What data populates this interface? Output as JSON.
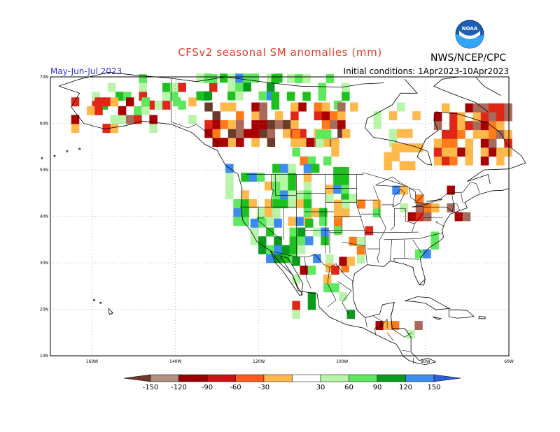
{
  "header": {
    "title": "CFSv2 seasonal SM anomalies (mm)",
    "organization": "NWS/NCEP/CPC",
    "season": "May-Jun-Jul 2023",
    "initial_conditions": "Initial conditions: 1Apr2023-10Apr2023",
    "logo_text": "NOAA"
  },
  "map": {
    "lat_labels": [
      "70N",
      "60N",
      "50N",
      "40N",
      "30N",
      "20N",
      "10N"
    ],
    "lon_labels": [
      "160W",
      "140W",
      "120W",
      "100W",
      "80W",
      "60W"
    ],
    "lat_range": [
      10,
      70
    ],
    "lon_range": [
      -170,
      -60
    ],
    "grid": "dotted"
  },
  "colorbar": {
    "labels": [
      "-150",
      "-120",
      "-90",
      "-60",
      "-30",
      "30",
      "60",
      "90",
      "120",
      "150"
    ],
    "colors": [
      "#6b3a2a",
      "#b09080",
      "#990000",
      "#d01010",
      "#ff5a1e",
      "#ffb84a",
      "#ffffff",
      "#b8f5a8",
      "#5ee85e",
      "#0a9b1e",
      "#3a8cf0",
      "#2b5fd6"
    ]
  },
  "anomaly_palette": {
    "dry_extreme": "#6b3a2a",
    "dry_very": "#a86a5a",
    "dry_high": "#a80000",
    "dry_mid": "#e02616",
    "dry_low": "#ff7a18",
    "dry_slight": "#ffb84a",
    "wet_slight": "#b8f5a8",
    "wet_low": "#5ee85e",
    "wet_mid": "#1ec01e",
    "wet_high": "#0a9b1e",
    "wet_very": "#3a8cf0"
  }
}
